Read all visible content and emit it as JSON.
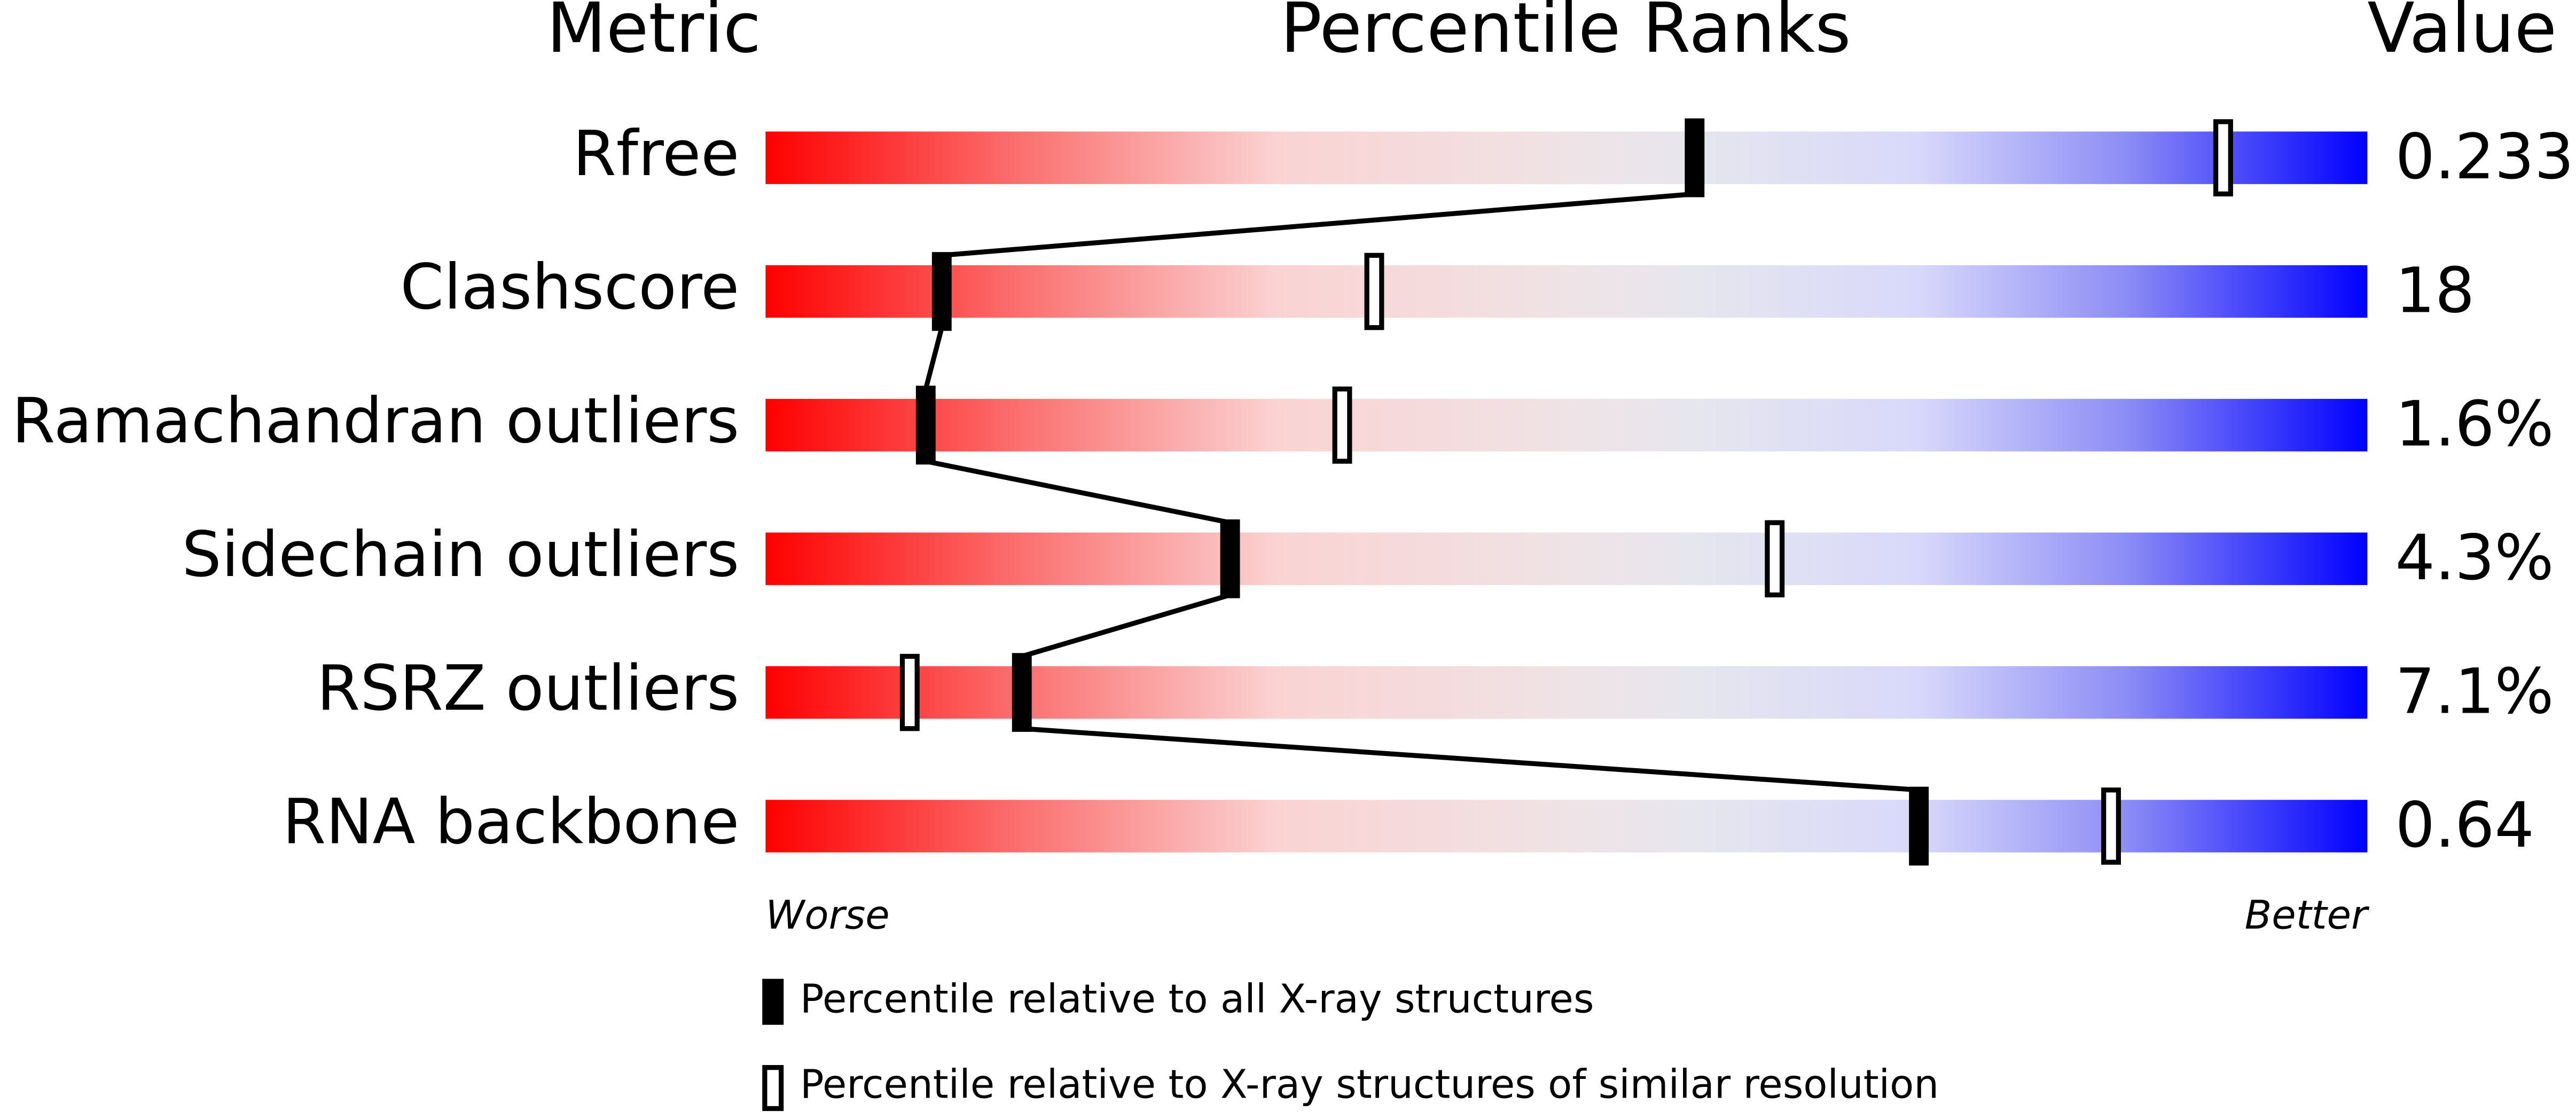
{
  "chart_data": {
    "type": "percentile",
    "headers": {
      "metric": "Metric",
      "ranks": "Percentile Ranks",
      "value": "Value"
    },
    "categories": [
      "Rfree",
      "Clashscore",
      "Ramachandran outliers",
      "Sidechain outliers",
      "RSRZ outliers",
      "RNA backbone"
    ],
    "metric_values": [
      "0.233",
      "18",
      "1.6%",
      "4.3%",
      "7.1%",
      "0.64"
    ],
    "series": [
      {
        "name": "Percentile relative to all X-ray structures",
        "color": "#000000",
        "filled": true,
        "values": [
          58,
          11,
          10,
          29,
          16,
          72
        ]
      },
      {
        "name": "Percentile relative to X-ray structures of similar resolution",
        "color": "#000000",
        "filled": false,
        "values": [
          91,
          38,
          36,
          63,
          9,
          84
        ]
      }
    ],
    "xlim": [
      0,
      100
    ],
    "worse_label": "Worse",
    "better_label": "Better"
  }
}
